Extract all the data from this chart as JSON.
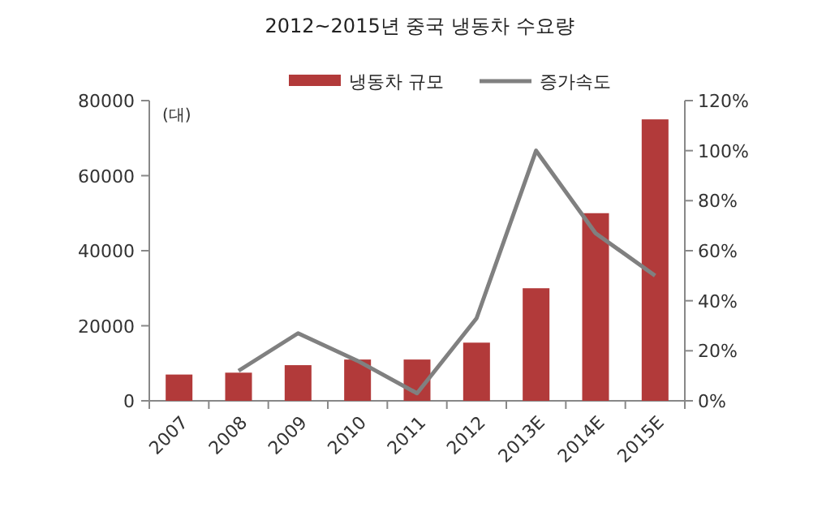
{
  "chart_data": {
    "type": "bar",
    "title": "2012~2015년 중국 냉동차 수요량",
    "ylabel": "(대)",
    "categories": [
      "2007",
      "2008",
      "2009",
      "2010",
      "2011",
      "2012",
      "2013E",
      "2014E",
      "2015E"
    ],
    "series": [
      {
        "name": "냉동차 규모",
        "color": "#b23a3a",
        "values": [
          7000,
          7500,
          9500,
          11000,
          11000,
          15500,
          30000,
          50000,
          75000
        ]
      },
      {
        "name": "증가속도",
        "type": "line",
        "axis": "y2",
        "color": "#808080",
        "values": [
          null,
          12,
          27,
          16,
          3,
          33,
          100,
          67,
          50
        ]
      }
    ],
    "ylim": [
      0,
      80000
    ],
    "yticks": [
      0,
      20000,
      40000,
      60000,
      80000
    ],
    "y2lim": [
      0,
      120
    ],
    "y2ticks": [
      {
        "value": 0,
        "label": "0%"
      },
      {
        "value": 20,
        "label": "20%"
      },
      {
        "value": 40,
        "label": "40%"
      },
      {
        "value": 60,
        "label": "60%"
      },
      {
        "value": 80,
        "label": "80%"
      },
      {
        "value": 100,
        "label": "100%"
      },
      {
        "value": 120,
        "label": "120%"
      }
    ],
    "grid": false,
    "legend": "top",
    "marker": "none",
    "line_style": "solid"
  }
}
